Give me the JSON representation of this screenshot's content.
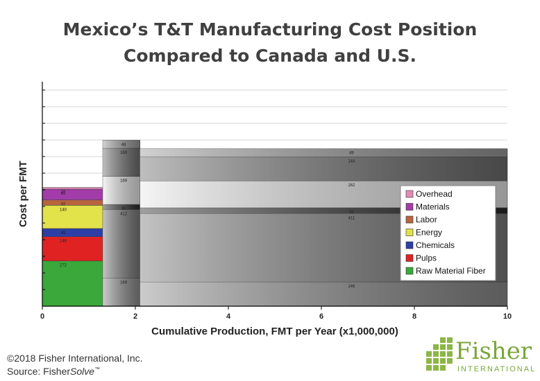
{
  "title": {
    "line1": "Mexico’s T&T Manufacturing Cost Position",
    "line2": "Compared to Canada and U.S."
  },
  "footer": {
    "copyright": "©2018 Fisher International, Inc.",
    "source_prefix": "Source: Fisher",
    "source_italic": "Solve",
    "source_tm": "™"
  },
  "logo": {
    "word": "Fisher",
    "sub": "INTERNATIONAL"
  },
  "chart_data": {
    "type": "bar",
    "xlabel": "Cumulative Production, FMT per Year (x1,000,000)",
    "ylabel": "Cost per FMT",
    "xlim": [
      0,
      10
    ],
    "x_ticks": [
      "0",
      "2",
      "4",
      "6",
      "8",
      "10"
    ],
    "ylim": [
      0,
      1350
    ],
    "grid": true,
    "legend_position": "right",
    "legend": [
      {
        "name": "Overhead",
        "color": "#e48ab5"
      },
      {
        "name": "Materials",
        "color": "#a23ca8"
      },
      {
        "name": "Labor",
        "color": "#b8643f"
      },
      {
        "name": "Energy",
        "color": "#e2e24a"
      },
      {
        "name": "Chemicals",
        "color": "#2d3fa6"
      },
      {
        "name": "Pulps",
        "color": "#e02222"
      },
      {
        "name": "Raw Material Fiber",
        "color": "#3aa83a"
      }
    ],
    "bars": [
      {
        "x_start": 0,
        "x_end": 1.3,
        "style": "color",
        "segments": [
          {
            "component": "Raw Material Fiber",
            "value": 272
          },
          {
            "component": "Pulps",
            "value": 146
          },
          {
            "component": "Chemicals",
            "value": 49
          },
          {
            "component": "Energy",
            "value": 140
          },
          {
            "component": "Labor",
            "value": 32
          },
          {
            "component": "Materials",
            "value": 65
          },
          {
            "component": "Overhead",
            "value": 10
          }
        ]
      },
      {
        "x_start": 1.3,
        "x_end": 2.1,
        "style": "gray",
        "segments": [
          {
            "component": "Raw Material Fiber",
            "value": 169
          },
          {
            "component": "Pulps",
            "value": 412
          },
          {
            "component": "Chemicals",
            "value": 31
          },
          {
            "component": "Energy",
            "value": 169
          },
          {
            "component": "Labor",
            "value": 169
          },
          {
            "component": "Materials",
            "value": 48
          }
        ]
      },
      {
        "x_start": 2.1,
        "x_end": 10,
        "style": "gray",
        "segments": [
          {
            "component": "Raw Material Fiber",
            "value": 146
          },
          {
            "component": "Pulps",
            "value": 411
          },
          {
            "component": "Chemicals",
            "value": 35
          },
          {
            "component": "Energy",
            "value": 162
          },
          {
            "component": "Labor",
            "value": 144
          },
          {
            "component": "Materials",
            "value": 49
          }
        ]
      }
    ]
  }
}
